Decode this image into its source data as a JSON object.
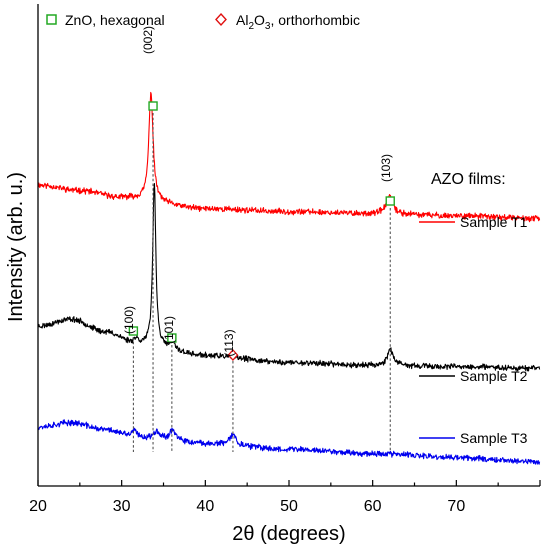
{
  "chart_data": {
    "type": "line",
    "xlabel": "2θ (degrees)",
    "ylabel": "Intensity (arb. u.)",
    "xlim": [
      20,
      80
    ],
    "x_ticks": [
      20,
      30,
      40,
      50,
      60,
      70
    ],
    "y_ticks": "none (arbitrary units)",
    "grid": false,
    "phase_legend": {
      "placement": "top-left",
      "items": [
        {
          "marker": "square",
          "color": "#22a822",
          "label_main": "ZnO, hexagonal",
          "label_parts": null
        },
        {
          "marker": "diamond",
          "color": "#e01010",
          "label_main": "",
          "label_parts": [
            "Al",
            "2",
            "O",
            "3",
            ", orthorhombic"
          ]
        }
      ]
    },
    "series_legend_title": "AZO films:",
    "series": [
      {
        "name": "Sample T1",
        "color": "#ff0000",
        "offset": 1.7,
        "background": [
          [
            20,
            0.21
          ],
          [
            25,
            0.17
          ],
          [
            30,
            0.12
          ],
          [
            40,
            0.04
          ],
          [
            50,
            0.02
          ],
          [
            60,
            0.005
          ],
          [
            70,
            -0.01
          ],
          [
            80,
            -0.03
          ]
        ],
        "peaks": [
          {
            "center": 33.5,
            "height": 0.78,
            "width": 0.3
          },
          {
            "center": 62.0,
            "height": 0.13,
            "width": 0.45
          }
        ],
        "noise": 0.017,
        "seed": 11
      },
      {
        "name": "Sample T2",
        "color": "#000000",
        "offset": 0.62,
        "background": [
          [
            20,
            0.28
          ],
          [
            24,
            0.33
          ],
          [
            28,
            0.24
          ],
          [
            32,
            0.15
          ],
          [
            40,
            0.07
          ],
          [
            50,
            0.02
          ],
          [
            60,
            0.0
          ],
          [
            70,
            -0.01
          ],
          [
            80,
            -0.02
          ]
        ],
        "peaks": [
          {
            "center": 31.7,
            "height": 0.04,
            "width": 0.35
          },
          {
            "center": 33.9,
            "height": 1.18,
            "width": 0.22
          },
          {
            "center": 36.1,
            "height": 0.05,
            "width": 0.35
          },
          {
            "center": 62.1,
            "height": 0.12,
            "width": 0.4
          }
        ],
        "noise": 0.016,
        "seed": 23
      },
      {
        "name": "Sample T3",
        "color": "#0000ee",
        "offset": 0.0,
        "background": [
          [
            20,
            0.18
          ],
          [
            24,
            0.21
          ],
          [
            28,
            0.16
          ],
          [
            32,
            0.1
          ],
          [
            40,
            0.06
          ],
          [
            50,
            0.02
          ],
          [
            60,
            -0.01
          ],
          [
            70,
            -0.04
          ],
          [
            80,
            -0.07
          ]
        ],
        "peaks": [
          {
            "center": 31.5,
            "height": 0.05,
            "width": 0.4
          },
          {
            "center": 34.2,
            "height": 0.06,
            "width": 0.4
          },
          {
            "center": 36.1,
            "height": 0.08,
            "width": 0.45
          },
          {
            "center": 43.3,
            "height": 0.08,
            "width": 0.4
          }
        ],
        "noise": 0.017,
        "seed": 37
      }
    ],
    "reflections": [
      {
        "label": "(002)",
        "position": 33.75,
        "phase": "ZnO",
        "marker": "square",
        "series": "Sample T1"
      },
      {
        "label": "(103)",
        "position": 62.1,
        "phase": "ZnO",
        "marker": "square",
        "series": "Sample T1"
      },
      {
        "label": "(100)",
        "position": 31.4,
        "phase": "ZnO",
        "marker": "square",
        "series": "Sample T2"
      },
      {
        "label": "(101)",
        "position": 36.0,
        "phase": "ZnO",
        "marker": "square",
        "series": "Sample T2"
      },
      {
        "label": "(113)",
        "position": 43.3,
        "phase": "Al2O3",
        "marker": "diamond",
        "series": "Sample T2"
      }
    ]
  }
}
